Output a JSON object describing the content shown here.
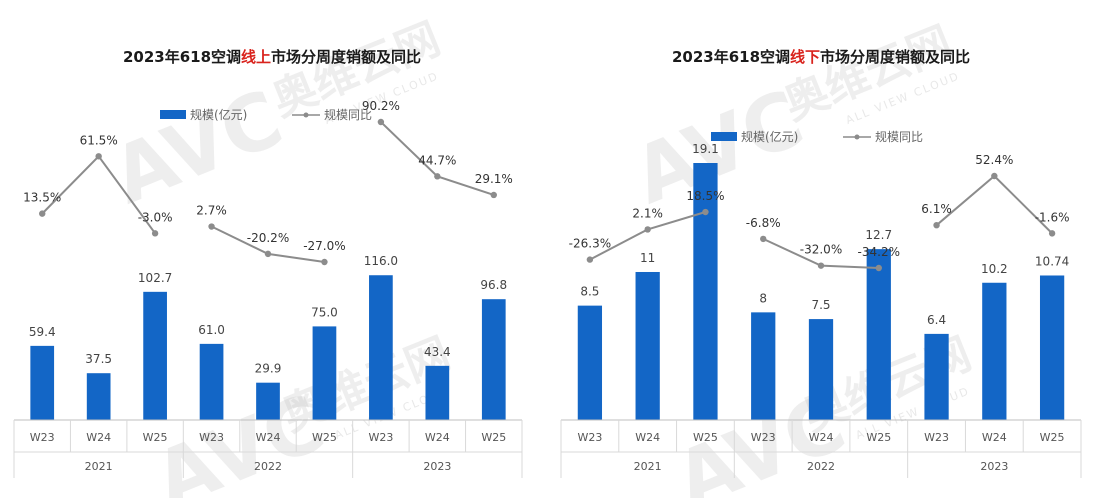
{
  "watermark": {
    "logo": "AVC",
    "brand": "奥维云网",
    "sub": "ALL VIEW CLOUD"
  },
  "chart_data": [
    {
      "type": "bar",
      "title_parts": [
        "2023年618空调",
        "线上",
        "市场分周度销额及同比"
      ],
      "legend": {
        "bar": "规模(亿元)",
        "line": "规模同比"
      },
      "categories": [
        "W23",
        "W24",
        "W25",
        "W23",
        "W24",
        "W25",
        "W23",
        "W24",
        "W25"
      ],
      "years": [
        "2021",
        "2022",
        "2023"
      ],
      "bar_labels": [
        "59.4",
        "37.5",
        "102.7",
        "61.0",
        "29.9",
        "75.0",
        "116.0",
        "43.4",
        "96.8"
      ],
      "values": [
        59.4,
        37.5,
        102.7,
        61.0,
        29.9,
        75.0,
        116.0,
        43.4,
        96.8
      ],
      "yoy_labels": [
        "13.5%",
        "61.5%",
        "-3.0%",
        "2.7%",
        "-20.2%",
        "-27.0%",
        "90.2%",
        "44.7%",
        "29.1%"
      ],
      "yoy": [
        13.5,
        61.5,
        -3.0,
        2.7,
        -20.2,
        -27.0,
        90.2,
        44.7,
        29.1
      ],
      "colors": {
        "bar": "#1366c6",
        "line": "#8c8c8c"
      }
    },
    {
      "type": "bar",
      "title_parts": [
        "2023年618空调",
        "线下",
        "市场分周度销额及同比"
      ],
      "legend": {
        "bar": "规模(亿元)",
        "line": "规模同比"
      },
      "categories": [
        "W23",
        "W24",
        "W25",
        "W23",
        "W24",
        "W25",
        "W23",
        "W24",
        "W25"
      ],
      "years": [
        "2021",
        "2022",
        "2023"
      ],
      "bar_labels": [
        "8.5",
        "11",
        "19.1",
        "8",
        "7.5",
        "12.7",
        "6.4",
        "10.2",
        "10.74"
      ],
      "values": [
        8.5,
        11,
        19.1,
        8,
        7.5,
        12.7,
        6.4,
        10.2,
        10.74
      ],
      "yoy_labels": [
        "-26.3%",
        "2.1%",
        "18.5%",
        "-6.8%",
        "-32.0%",
        "-34.2%",
        "6.1%",
        "52.4%",
        "-1.6%"
      ],
      "yoy": [
        -26.3,
        2.1,
        18.5,
        -6.8,
        -32.0,
        -34.2,
        6.1,
        52.4,
        -1.6
      ],
      "colors": {
        "bar": "#1366c6",
        "line": "#8c8c8c"
      }
    }
  ]
}
